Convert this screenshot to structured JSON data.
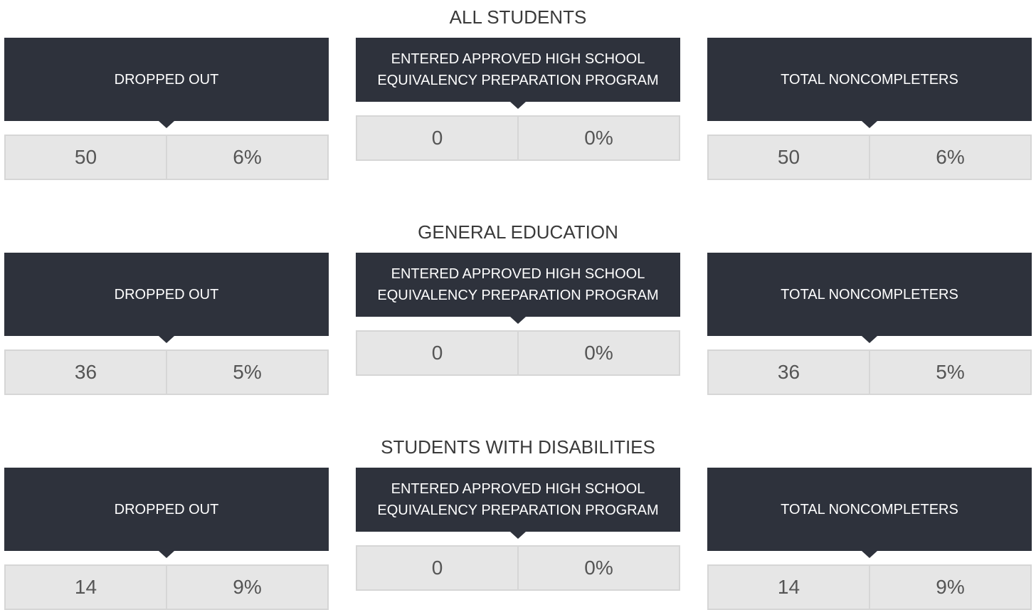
{
  "sections": [
    {
      "title": "ALL STUDENTS",
      "cards": [
        {
          "label": "DROPPED OUT",
          "count": 50,
          "percent": "6%"
        },
        {
          "label": "ENTERED APPROVED HIGH SCHOOL EQUIVALENCY PREPARATION PROGRAM",
          "count": 0,
          "percent": "0%"
        },
        {
          "label": "TOTAL NONCOMPLETERS",
          "count": 50,
          "percent": "6%"
        }
      ]
    },
    {
      "title": "GENERAL EDUCATION",
      "cards": [
        {
          "label": "DROPPED OUT",
          "count": 36,
          "percent": "5%"
        },
        {
          "label": "ENTERED APPROVED HIGH SCHOOL EQUIVALENCY PREPARATION PROGRAM",
          "count": 0,
          "percent": "0%"
        },
        {
          "label": "TOTAL NONCOMPLETERS",
          "count": 36,
          "percent": "5%"
        }
      ]
    },
    {
      "title": "STUDENTS WITH DISABILITIES",
      "cards": [
        {
          "label": "DROPPED OUT",
          "count": 14,
          "percent": "9%"
        },
        {
          "label": "ENTERED APPROVED HIGH SCHOOL EQUIVALENCY PREPARATION PROGRAM",
          "count": 0,
          "percent": "0%"
        },
        {
          "label": "TOTAL NONCOMPLETERS",
          "count": 14,
          "percent": "9%"
        }
      ]
    }
  ]
}
